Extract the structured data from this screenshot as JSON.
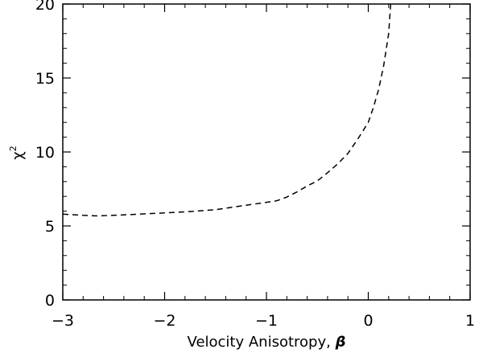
{
  "chart_data": {
    "type": "line",
    "title": "",
    "xlabel": "Velocity Anisotropy, ",
    "xlabel_symbol": "β",
    "ylabel": "χ",
    "ylabel_superscript": "2",
    "xlim": [
      -3,
      1
    ],
    "ylim": [
      0,
      20
    ],
    "x_ticks": [
      -3,
      -2,
      -1,
      0,
      1
    ],
    "x_tick_labels": [
      "−3",
      "−2",
      "−1",
      "0",
      "1"
    ],
    "y_ticks": [
      0,
      5,
      10,
      15,
      20
    ],
    "y_tick_labels": [
      "0",
      "5",
      "10",
      "15",
      "20"
    ],
    "grid": false,
    "line_style": "dashed",
    "line_color": "#000000",
    "series": [
      {
        "name": "chi-squared",
        "x": [
          -3.0,
          -2.8,
          -2.65,
          -2.4,
          -2.1,
          -1.8,
          -1.5,
          -1.2,
          -1.0,
          -0.9,
          -0.8,
          -0.7,
          -0.6,
          -0.5,
          -0.4,
          -0.3,
          -0.2,
          -0.1,
          0.0,
          0.05,
          0.1,
          0.15,
          0.2,
          0.22
        ],
        "y": [
          5.8,
          5.72,
          5.68,
          5.75,
          5.85,
          5.95,
          6.1,
          6.4,
          6.6,
          6.7,
          6.95,
          7.3,
          7.7,
          8.05,
          8.6,
          9.2,
          9.9,
          10.9,
          12.0,
          13.0,
          14.2,
          15.8,
          18.0,
          20.0
        ]
      }
    ]
  }
}
